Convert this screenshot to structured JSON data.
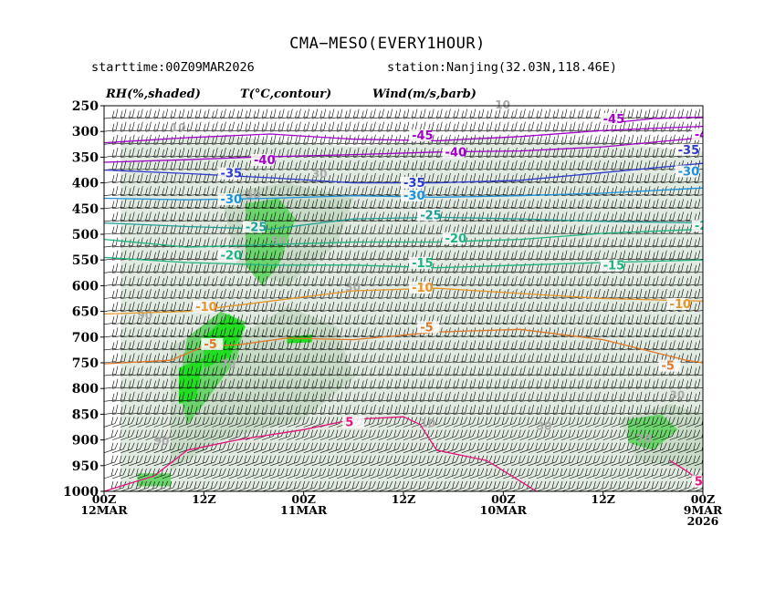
{
  "header": {
    "title": "CMA−MESO(EVERY1HOUR)",
    "starttime": "starttime:00Z09MAR2026",
    "station": "station:Nanjing(32.03N,118.46E)"
  },
  "legend": {
    "rh": "RH(%,shaded)",
    "t": "T(°C,contour)",
    "wind": "Wind(m/s,barb)"
  },
  "chart_data": {
    "type": "heatmap",
    "title": "CMA−MESO(EVERY1HOUR)",
    "y_axis": {
      "label": "",
      "ticks": [
        250,
        300,
        350,
        400,
        450,
        500,
        550,
        600,
        650,
        700,
        750,
        800,
        850,
        900,
        950,
        1000
      ],
      "range": [
        1000,
        250
      ],
      "inverted": true
    },
    "x_axis": {
      "ticks": [
        {
          "hours": 0,
          "line1": "00Z",
          "line2": "12MAR",
          "line3": ""
        },
        {
          "hours": 12,
          "line1": "12Z",
          "line2": "",
          "line3": ""
        },
        {
          "hours": 24,
          "line1": "00Z",
          "line2": "11MAR",
          "line3": ""
        },
        {
          "hours": 36,
          "line1": "12Z",
          "line2": "",
          "line3": ""
        },
        {
          "hours": 48,
          "line1": "00Z",
          "line2": "10MAR",
          "line3": ""
        },
        {
          "hours": 60,
          "line1": "12Z",
          "line2": "",
          "line3": ""
        },
        {
          "hours": 72,
          "line1": "00Z",
          "line2": "9MAR",
          "line3": "2026"
        }
      ],
      "range": [
        0,
        72
      ],
      "reversed": "time runs right to left"
    },
    "rh_shading": {
      "colors": {
        "light": "#e1ebe1",
        "medium": "#c8dcc8",
        "high": "#6cd46c",
        "very_high": "#22dd22"
      },
      "regions": [
        {
          "level": "light",
          "pts": [
            [
              2,
              320
            ],
            [
              15,
              310
            ],
            [
              30,
              330
            ],
            [
              45,
              310
            ],
            [
              60,
              320
            ],
            [
              72,
              340
            ],
            [
              72,
              1000
            ],
            [
              2,
              1000
            ]
          ]
        },
        {
          "level": "medium",
          "pts": [
            [
              8,
              720
            ],
            [
              12,
              680
            ],
            [
              16,
              700
            ],
            [
              22,
              640
            ],
            [
              28,
              680
            ],
            [
              30,
              780
            ],
            [
              24,
              860
            ],
            [
              14,
              900
            ],
            [
              8,
              960
            ]
          ]
        },
        {
          "level": "medium",
          "pts": [
            [
              14,
              420
            ],
            [
              22,
              400
            ],
            [
              30,
              430
            ],
            [
              28,
              520
            ],
            [
              22,
              600
            ],
            [
              16,
              560
            ]
          ]
        },
        {
          "level": "medium",
          "pts": [
            [
              62,
              860
            ],
            [
              68,
              830
            ],
            [
              72,
              850
            ],
            [
              72,
              960
            ],
            [
              64,
              940
            ]
          ]
        },
        {
          "level": "high",
          "pts": [
            [
              17,
              440
            ],
            [
              21,
              430
            ],
            [
              23,
              470
            ],
            [
              21,
              560
            ],
            [
              19,
              600
            ],
            [
              17,
              560
            ]
          ]
        },
        {
          "level": "high",
          "pts": [
            [
              10,
              700
            ],
            [
              14,
              650
            ],
            [
              17,
              670
            ],
            [
              16,
              740
            ],
            [
              12,
              830
            ],
            [
              10,
              870
            ],
            [
              9,
              800
            ]
          ]
        },
        {
          "level": "high",
          "pts": [
            [
              63,
              860
            ],
            [
              67,
              850
            ],
            [
              69,
              880
            ],
            [
              66,
              920
            ],
            [
              63,
              905
            ]
          ]
        },
        {
          "level": "high",
          "pts": [
            [
              4,
              965
            ],
            [
              8,
              965
            ],
            [
              8,
              990
            ],
            [
              4,
              990
            ]
          ]
        },
        {
          "level": "very_high",
          "pts": [
            [
              12,
              700
            ],
            [
              15,
              655
            ],
            [
              17,
              680
            ],
            [
              15,
              740
            ],
            [
              12,
              760
            ]
          ]
        },
        {
          "level": "very_high",
          "pts": [
            [
              9,
              760
            ],
            [
              12,
              740
            ],
            [
              11,
              820
            ],
            [
              9,
              830
            ]
          ]
        },
        {
          "level": "very_high",
          "pts": [
            [
              22,
              700
            ],
            [
              25,
              695
            ],
            [
              25,
              710
            ],
            [
              22,
              712
            ]
          ]
        }
      ],
      "labels": [
        {
          "text": "70",
          "x": 14,
          "p": 760
        },
        {
          "text": "50",
          "x": 17,
          "p": 430
        },
        {
          "text": "50",
          "x": 20,
          "p": 520
        },
        {
          "text": "30",
          "x": 29,
          "p": 610
        },
        {
          "text": "30",
          "x": 25,
          "p": 390
        },
        {
          "text": "10",
          "x": 8,
          "p": 300
        },
        {
          "text": "10",
          "x": 47,
          "p": 255
        },
        {
          "text": "10",
          "x": 38,
          "p": 875
        },
        {
          "text": "30",
          "x": 52,
          "p": 880
        },
        {
          "text": "30",
          "x": 68,
          "p": 820
        },
        {
          "text": "90",
          "x": 6,
          "p": 910
        },
        {
          "text": "70",
          "x": 64,
          "p": 905
        },
        {
          "text": "90",
          "x": 4,
          "p": 665
        }
      ]
    },
    "temperature_contours": [
      {
        "value": -45,
        "color": "#a000c8",
        "pts": [
          [
            0,
            322
          ],
          [
            10,
            312
          ],
          [
            20,
            305
          ],
          [
            30,
            315
          ],
          [
            40,
            318
          ],
          [
            50,
            310
          ],
          [
            60,
            298
          ],
          [
            72,
            290
          ]
        ],
        "label": {
          "x": 37,
          "p": 312
        }
      },
      {
        "value": -45,
        "color": "#a000c8",
        "pts": [
          [
            60,
            285
          ],
          [
            66,
            275
          ],
          [
            72,
            272
          ]
        ],
        "label": {
          "x": 60,
          "p": 280
        }
      },
      {
        "value": -40,
        "color": "#a000c8",
        "pts": [
          [
            0,
            360
          ],
          [
            10,
            355
          ],
          [
            18,
            350
          ],
          [
            30,
            345
          ],
          [
            40,
            340
          ],
          [
            50,
            338
          ],
          [
            60,
            330
          ],
          [
            72,
            312
          ]
        ],
        "label": {
          "x": 41,
          "p": 345
        }
      },
      {
        "value": -40,
        "color": "#a000c8",
        "pts": [],
        "label": {
          "x": 18,
          "p": 360
        }
      },
      {
        "value": -40,
        "color": "#a000c8",
        "pts": [],
        "label": {
          "x": 71,
          "p": 310
        }
      },
      {
        "value": -35,
        "color": "#2c3ccc",
        "pts": [
          [
            0,
            375
          ],
          [
            10,
            382
          ],
          [
            20,
            390
          ],
          [
            30,
            400
          ],
          [
            40,
            400
          ],
          [
            50,
            395
          ],
          [
            60,
            380
          ],
          [
            72,
            362
          ]
        ],
        "label": {
          "x": 14,
          "p": 386
        }
      },
      {
        "value": -35,
        "color": "#2c3ccc",
        "pts": [],
        "label": {
          "x": 36,
          "p": 404
        }
      },
      {
        "value": -35,
        "color": "#2c3ccc",
        "pts": [],
        "label": {
          "x": 69,
          "p": 340
        }
      },
      {
        "value": -30,
        "color": "#1c92dc",
        "pts": [
          [
            0,
            430
          ],
          [
            10,
            433
          ],
          [
            20,
            430
          ],
          [
            30,
            425
          ],
          [
            40,
            428
          ],
          [
            50,
            425
          ],
          [
            60,
            420
          ],
          [
            72,
            410
          ]
        ],
        "label": {
          "x": 14,
          "p": 436
        }
      },
      {
        "value": -30,
        "color": "#1c92dc",
        "pts": [],
        "label": {
          "x": 36,
          "p": 429
        }
      },
      {
        "value": -30,
        "color": "#1c92dc",
        "pts": [],
        "label": {
          "x": 69,
          "p": 382
        }
      },
      {
        "value": -25,
        "color": "#1e9e96",
        "pts": [
          [
            0,
            478
          ],
          [
            10,
            485
          ],
          [
            20,
            490
          ],
          [
            30,
            470
          ],
          [
            40,
            467
          ],
          [
            50,
            470
          ],
          [
            60,
            475
          ],
          [
            72,
            478
          ]
        ],
        "label": {
          "x": 38,
          "p": 467
        }
      },
      {
        "value": -25,
        "color": "#1e9e96",
        "pts": [],
        "label": {
          "x": 17,
          "p": 490
        }
      },
      {
        "value": -20,
        "color": "#1eb482",
        "pts": [
          [
            0,
            510
          ],
          [
            10,
            525
          ],
          [
            20,
            520
          ],
          [
            30,
            515
          ],
          [
            40,
            515
          ],
          [
            50,
            510
          ],
          [
            60,
            498
          ],
          [
            72,
            490
          ]
        ],
        "label": {
          "x": 41,
          "p": 512
        }
      },
      {
        "value": -20,
        "color": "#1eb482",
        "pts": [],
        "label": {
          "x": 71,
          "p": 488
        }
      },
      {
        "value": -20,
        "color": "#1eb482",
        "pts": [],
        "label": {
          "x": 14,
          "p": 545
        }
      },
      {
        "value": -15,
        "color": "#1eb482",
        "pts": [
          [
            0,
            545
          ],
          [
            10,
            555
          ],
          [
            20,
            560
          ],
          [
            30,
            560
          ],
          [
            40,
            565
          ],
          [
            50,
            560
          ],
          [
            60,
            555
          ],
          [
            72,
            550
          ]
        ],
        "label": {
          "x": 37,
          "p": 560
        }
      },
      {
        "value": -15,
        "color": "#1eb482",
        "pts": [],
        "label": {
          "x": 60,
          "p": 565
        }
      },
      {
        "value": -10,
        "color": "#e69628",
        "pts": [
          [
            0,
            655
          ],
          [
            10,
            650
          ],
          [
            20,
            630
          ],
          [
            30,
            610
          ],
          [
            40,
            605
          ],
          [
            50,
            615
          ],
          [
            60,
            625
          ],
          [
            72,
            630
          ]
        ],
        "label": {
          "x": 37,
          "p": 608
        }
      },
      {
        "value": -10,
        "color": "#e69628",
        "pts": [],
        "label": {
          "x": 11,
          "p": 645
        }
      },
      {
        "value": -10,
        "color": "#e69628",
        "pts": [],
        "label": {
          "x": 68,
          "p": 640
        }
      },
      {
        "value": -5,
        "color": "#e07828",
        "pts": [
          [
            0,
            752
          ],
          [
            8,
            745
          ],
          [
            12,
            718
          ],
          [
            16,
            715
          ],
          [
            22,
            702
          ],
          [
            30,
            705
          ],
          [
            40,
            690
          ],
          [
            50,
            685
          ],
          [
            60,
            705
          ],
          [
            70,
            745
          ],
          [
            72,
            750
          ]
        ],
        "label": {
          "x": 12,
          "p": 718
        }
      },
      {
        "value": -5,
        "color": "#e07828",
        "pts": [],
        "label": {
          "x": 38,
          "p": 685
        }
      },
      {
        "value": -5,
        "color": "#e07828",
        "pts": [],
        "label": {
          "x": 67,
          "p": 760
        }
      },
      {
        "value": 5,
        "color": "#e0147a",
        "pts": [
          [
            0,
            1000
          ],
          [
            6,
            970
          ],
          [
            10,
            920
          ],
          [
            16,
            900
          ],
          [
            24,
            880
          ],
          [
            30,
            860
          ],
          [
            36,
            855
          ],
          [
            38,
            870
          ],
          [
            40,
            920
          ],
          [
            46,
            940
          ],
          [
            50,
            980
          ],
          [
            52,
            1000
          ]
        ],
        "label": {
          "x": 29,
          "p": 870
        }
      },
      {
        "value": 5,
        "color": "#e0147a",
        "pts": [
          [
            68,
            940
          ],
          [
            70,
            960
          ],
          [
            72,
            985
          ]
        ],
        "label": {
          "x": 71,
          "p": 985
        }
      }
    ],
    "wind_barbs": "dense barbs at every hour and pressure level"
  }
}
